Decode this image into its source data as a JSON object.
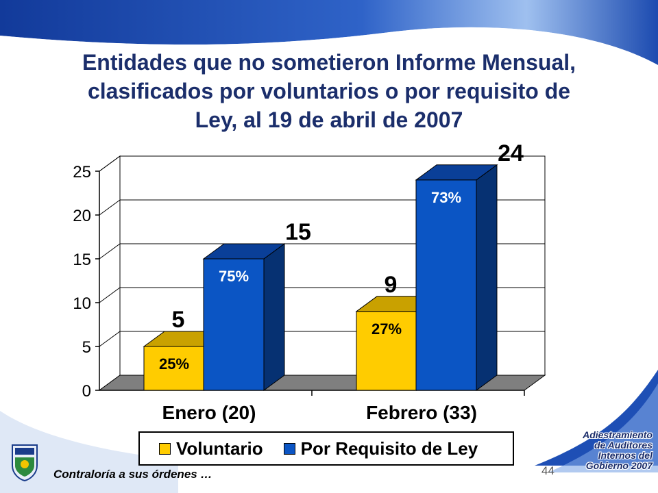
{
  "title_lines": [
    "Entidades que no sometieron Informe Mensual,",
    "clasificados por voluntarios o por requisito de",
    "Ley, al 19 de abril de 2007"
  ],
  "legend": {
    "voluntario": "Voluntario",
    "requisito": "Por Requisito de Ley"
  },
  "footer": {
    "tagline": "Contraloría a sus órdenes …",
    "page_number": "44"
  },
  "corner_lines": [
    "Adiestramiento",
    "de Auditores",
    "Internos del",
    "Gobierno 2007"
  ],
  "colors": {
    "voluntario": "#ffcc00",
    "voluntario_side": "#8a6e00",
    "voluntario_top": "#c9a100",
    "requisito": "#0b55c4",
    "requisito_side": "#063172",
    "requisito_top": "#0a3f98",
    "background_band": "#173d9b"
  },
  "chart_data": {
    "type": "bar",
    "categories": [
      "Enero (20)",
      "Febrero (33)"
    ],
    "series": [
      {
        "name": "Voluntario",
        "values": [
          5,
          9
        ],
        "percent_labels": [
          "25%",
          "27%"
        ]
      },
      {
        "name": "Por Requisito de Ley",
        "values": [
          15,
          24
        ],
        "percent_labels": [
          "75%",
          "73%"
        ]
      }
    ],
    "value_labels": [
      [
        "5",
        "9"
      ],
      [
        "15",
        "24"
      ]
    ],
    "yticks": [
      0,
      5,
      10,
      15,
      20,
      25
    ],
    "ylim": [
      0,
      25
    ],
    "grid": true,
    "style": "3d-column",
    "legend_position": "bottom"
  }
}
